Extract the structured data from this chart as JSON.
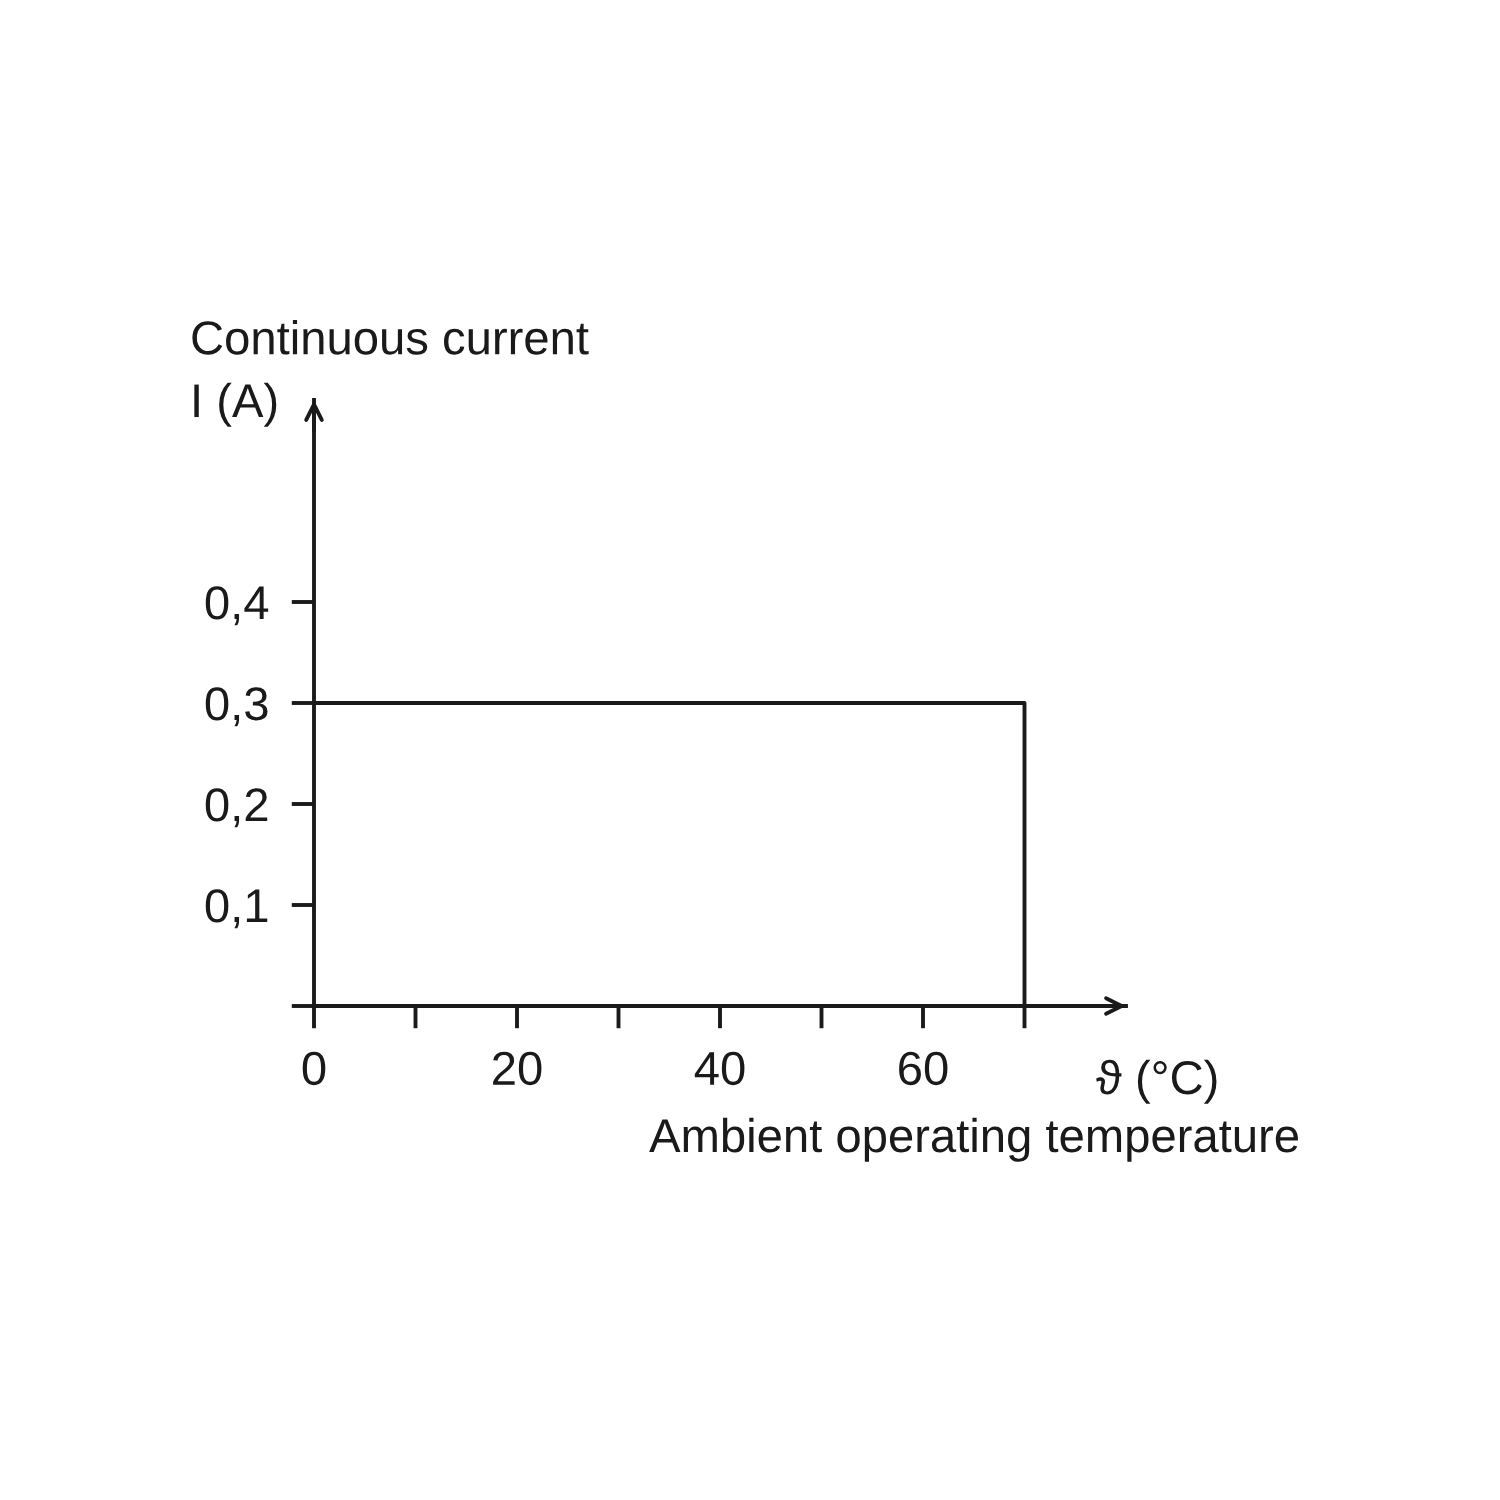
{
  "chart_data": {
    "type": "step",
    "xlabel": "ϑ (°C)",
    "ylabel": "Continuous current\nI (A)",
    "annotations": [
      "Ambient operating temperature"
    ],
    "x": [
      0,
      70
    ],
    "values": [
      0.3,
      0
    ],
    "color": "#1a1a1a",
    "xlim": [
      0,
      80
    ],
    "ylim": [
      0,
      0.6
    ],
    "xticks": [
      0,
      {
        "value": 10,
        "label": null
      },
      20,
      {
        "value": 30,
        "label": null
      },
      40,
      {
        "value": 50,
        "label": null
      },
      60,
      {
        "value": 70,
        "label": null
      }
    ],
    "yticks": [
      {
        "value": 0,
        "label": null
      },
      {
        "value": 0.1,
        "label": "0,1"
      },
      {
        "value": 0.2,
        "label": "0,2"
      },
      {
        "value": 0.3,
        "label": "0,3"
      },
      {
        "value": 0.4,
        "label": "0,4"
      }
    ]
  }
}
